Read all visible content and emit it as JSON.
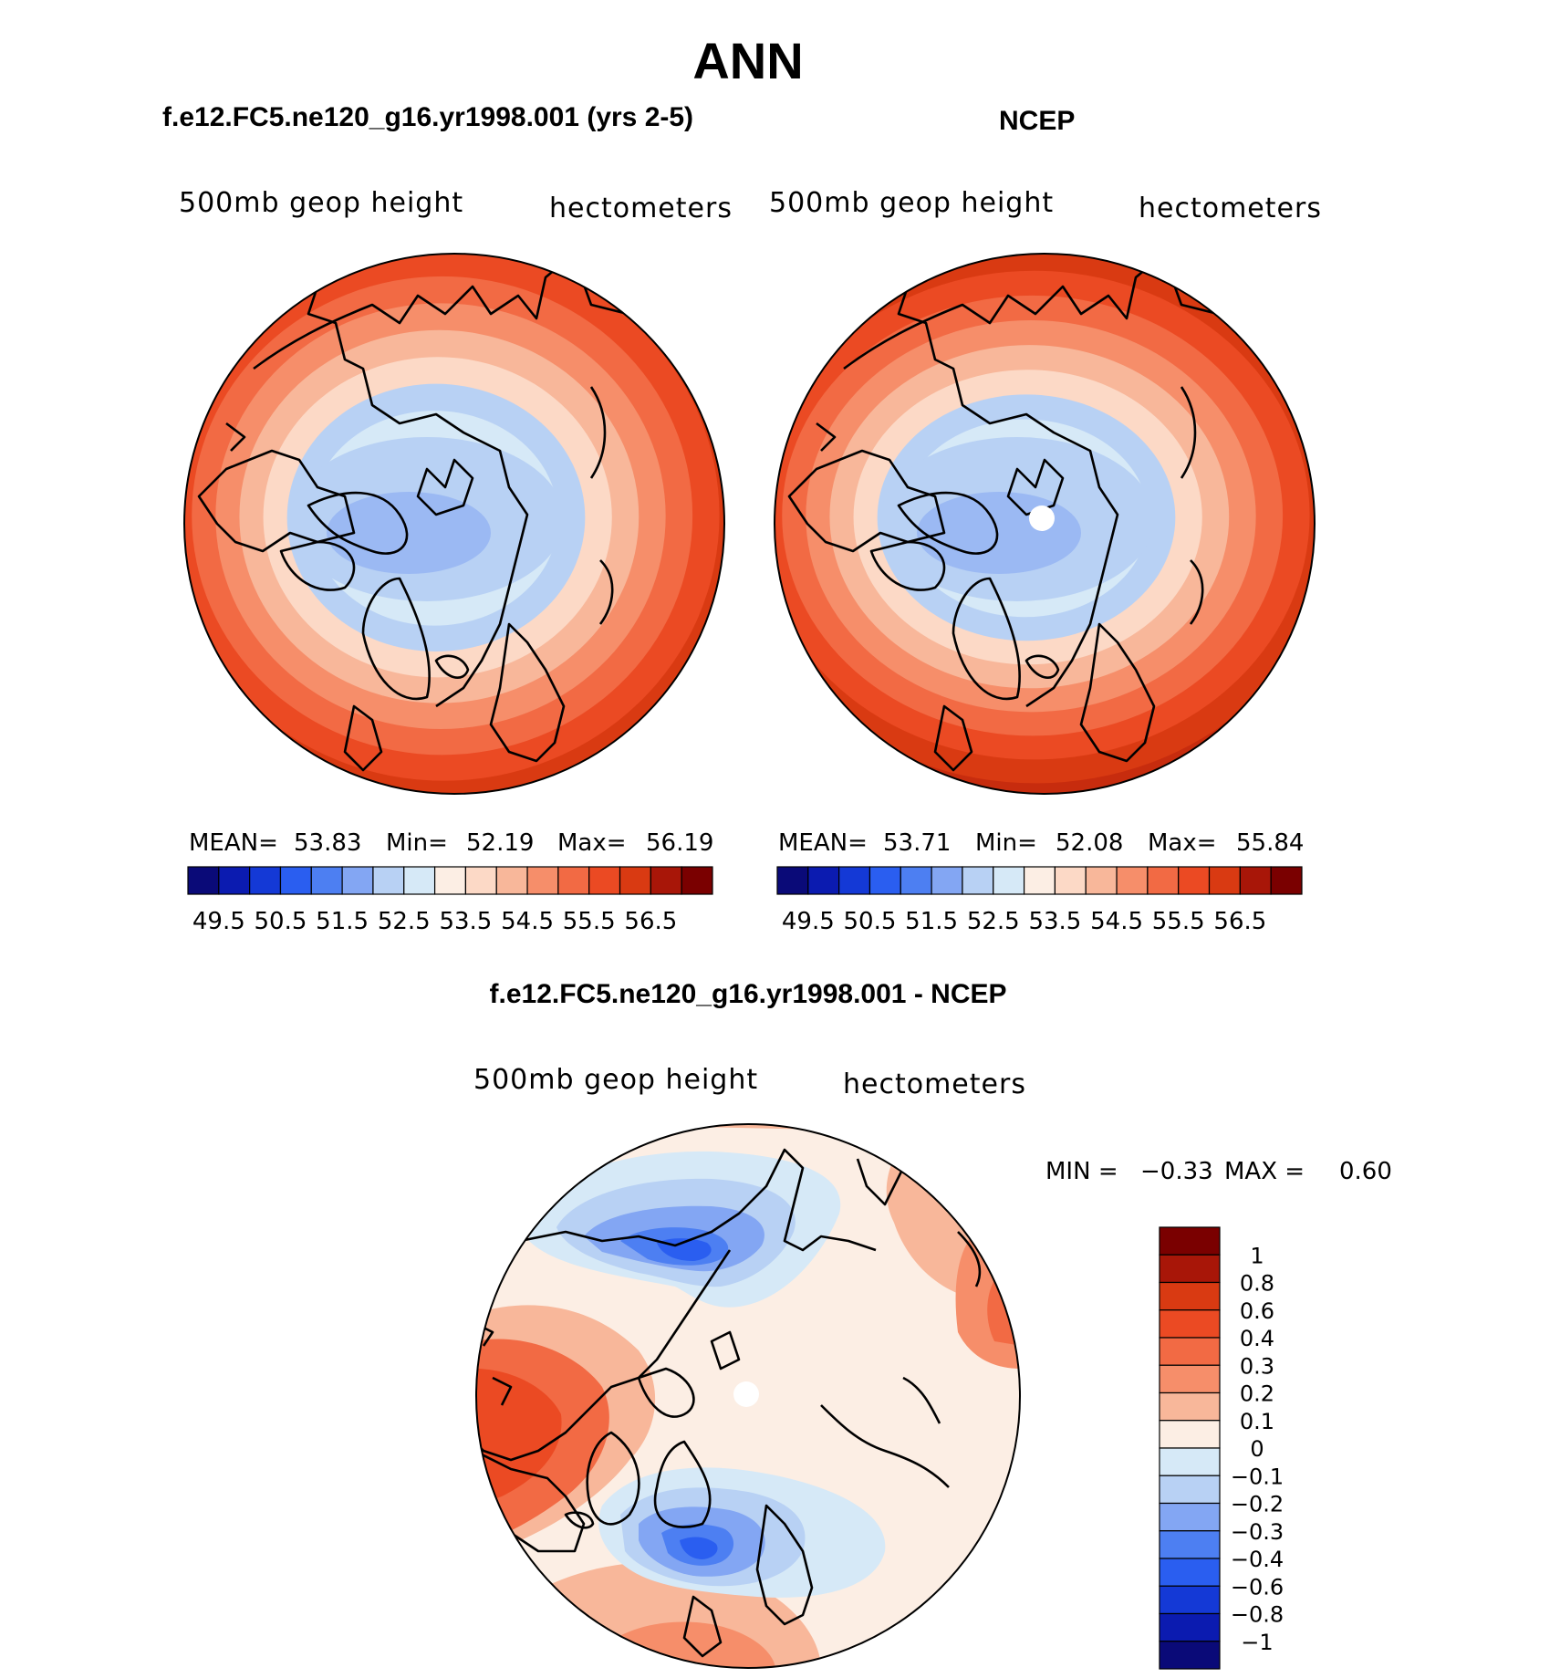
{
  "page": {
    "title": "ANN"
  },
  "panels": [
    {
      "id": "model",
      "title": "f.e12.FC5.ne120_g16.yr1998.001 (yrs 2-5)",
      "variable": "500mb geop height",
      "units": "hectometers",
      "stats": {
        "mean_label": "MEAN=",
        "mean": "53.83",
        "min_label": "Min=",
        "min": "52.19",
        "max_label": "Max=",
        "max": "56.19"
      },
      "fill_bands": [
        "#fcd9c6",
        "#fceee4",
        "#d6e9f7",
        "#b8d1f4",
        "#fcd9c6",
        "#f8b79a",
        "#f68e6a",
        "#f26a44",
        "#eb4a23",
        "#d93a12"
      ],
      "has_pole_hole": false
    },
    {
      "id": "obs",
      "title": "NCEP",
      "variable": "500mb geop height",
      "units": "hectometers",
      "stats": {
        "mean_label": "MEAN=",
        "mean": "53.71",
        "min_label": "Min=",
        "min": "52.08",
        "max_label": "Max=",
        "max": "55.84"
      },
      "fill_bands": [
        "#fcd9c6",
        "#fceee4",
        "#d6e9f7",
        "#b8d1f4",
        "#fcd9c6",
        "#f8b79a",
        "#f68e6a",
        "#f26a44",
        "#eb4a23",
        "#d93a12"
      ],
      "has_pole_hole": true
    }
  ],
  "abs_colorbar": {
    "colors": [
      "#0a0a78",
      "#0b1bb0",
      "#1439d6",
      "#2a5ef0",
      "#4d7ff2",
      "#83a6f3",
      "#b8d1f4",
      "#d6e9f7",
      "#fceee4",
      "#fcd9c6",
      "#f8b79a",
      "#f68e6a",
      "#f26a44",
      "#eb4a23",
      "#d93a12",
      "#a81608",
      "#7a0000"
    ],
    "tick_labels": [
      "49.5",
      "50.5",
      "51.5",
      "52.5",
      "53.5",
      "54.5",
      "55.5",
      "56.5"
    ]
  },
  "diff_panel": {
    "title": "f.e12.FC5.ne120_g16.yr1998.001 - NCEP",
    "variable": "500mb geop height",
    "units": "hectometers",
    "stats": {
      "min_label": "MIN =",
      "min": "−0.33",
      "max_label": "MAX =",
      "max": "0.60"
    },
    "has_pole_hole": true
  },
  "diff_colorbar": {
    "colors": [
      "#7a0000",
      "#a81608",
      "#d93a12",
      "#eb4a23",
      "#f26a44",
      "#f68e6a",
      "#f8b79a",
      "#fceee4",
      "#d6e9f7",
      "#b8d1f4",
      "#83a6f3",
      "#4d7ff2",
      "#2a5ef0",
      "#1439d6",
      "#0b1bb0",
      "#0a0a78"
    ],
    "tick_labels": [
      "1",
      "0.8",
      "0.6",
      "0.4",
      "0.3",
      "0.2",
      "0.1",
      "0",
      "−0.1",
      "−0.2",
      "−0.3",
      "−0.4",
      "−0.6",
      "−0.8",
      "−1"
    ]
  },
  "colors": {
    "coast": "#000000",
    "background": "#ffffff"
  }
}
